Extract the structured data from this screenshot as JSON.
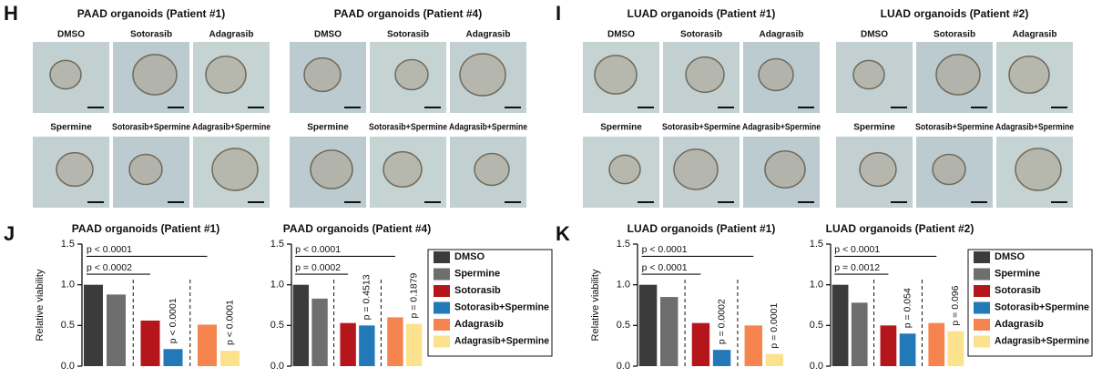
{
  "panel_letters": [
    "H",
    "I",
    "J",
    "K"
  ],
  "image_groups": [
    {
      "title": "PAAD organoids (Patient #1)",
      "labels": [
        "DMSO",
        "Sotorasib",
        "Adagrasib",
        "Spermine",
        "Sotorasib+Spermine",
        "Adagrasib+Spermine"
      ]
    },
    {
      "title": "PAAD organoids (Patient #4)",
      "labels": [
        "DMSO",
        "Sotorasib",
        "Adagrasib",
        "Spermine",
        "Sotorasib+Spermine",
        "Adagrasib+Spermine"
      ]
    },
    {
      "title": "LUAD organoids (Patient #1)",
      "labels": [
        "DMSO",
        "Sotorasib",
        "Adagrasib",
        "Spermine",
        "Sotorasib+Spermine",
        "Adagrasib+Spermine"
      ]
    },
    {
      "title": "LUAD organoids (Patient #2)",
      "labels": [
        "DMSO",
        "Sotorasib",
        "Adagrasib",
        "Spermine",
        "Sotorasib+Spermine",
        "Adagrasib+Spermine"
      ]
    }
  ],
  "chart_data": [
    {
      "type": "bar",
      "title": "PAAD organoids (Patient #1)",
      "y_label": "Relative viability",
      "categories": [
        "DMSO",
        "Spermine",
        "Sotorasib",
        "Sotorasib+Spermine",
        "Adagrasib",
        "Adagrasib+Spermine"
      ],
      "values": [
        1.0,
        0.88,
        0.56,
        0.21,
        0.51,
        0.19
      ],
      "colors": [
        "#3b3b3b",
        "#6e6e6e",
        "#b5161c",
        "#2379b8",
        "#f5844f",
        "#fde28e"
      ],
      "ylim": [
        0,
        1.5
      ],
      "yticks": [
        {
          "value": 0,
          "label": "0.0"
        },
        {
          "value": 0.5,
          "label": "0.5"
        },
        {
          "value": 1,
          "label": "1.0"
        },
        {
          "value": 1.5,
          "label": "1.5"
        }
      ],
      "brackets": [
        "p < 0.0001",
        "p < 0.0002"
      ],
      "bar_annotations": [
        "p < 0.0001",
        "p < 0.0001"
      ]
    },
    {
      "type": "bar",
      "title": "PAAD organoids (Patient #4)",
      "categories": [
        "DMSO",
        "Spermine",
        "Sotorasib",
        "Sotorasib+Spermine",
        "Adagrasib",
        "Adagrasib+Spermine"
      ],
      "values": [
        1.0,
        0.83,
        0.53,
        0.5,
        0.6,
        0.52
      ],
      "colors": [
        "#3b3b3b",
        "#6e6e6e",
        "#b5161c",
        "#2379b8",
        "#f5844f",
        "#fde28e"
      ],
      "ylim": [
        0,
        1.5
      ],
      "yticks": [
        {
          "value": 0,
          "label": "0.0"
        },
        {
          "value": 0.5,
          "label": "0.5"
        },
        {
          "value": 1,
          "label": "1.0"
        },
        {
          "value": 1.5,
          "label": "1.5"
        }
      ],
      "brackets": [
        "p < 0.0001",
        "p = 0.0002"
      ],
      "bar_annotations": [
        "p = 0.4513",
        "p = 0.1879"
      ],
      "legend": "right"
    },
    {
      "type": "bar",
      "title": "LUAD organoids (Patient #1)",
      "y_label": "Relative viability",
      "categories": [
        "DMSO",
        "Spermine",
        "Sotorasib",
        "Sotorasib+Spermine",
        "Adagrasib",
        "Adagrasib+Spermine"
      ],
      "values": [
        1.0,
        0.85,
        0.53,
        0.2,
        0.5,
        0.15
      ],
      "colors": [
        "#3b3b3b",
        "#6e6e6e",
        "#b5161c",
        "#2379b8",
        "#f5844f",
        "#fde28e"
      ],
      "ylim": [
        0,
        1.5
      ],
      "yticks": [
        {
          "value": 0,
          "label": "0.0"
        },
        {
          "value": 0.5,
          "label": "0.5"
        },
        {
          "value": 1,
          "label": "1.0"
        },
        {
          "value": 1.5,
          "label": "1.5"
        }
      ],
      "brackets": [
        "p < 0.0001",
        "p < 0.0001"
      ],
      "bar_annotations": [
        "p = 0.0002",
        "p = 0.0001"
      ]
    },
    {
      "type": "bar",
      "title": "LUAD organoids (Patient #2)",
      "categories": [
        "DMSO",
        "Spermine",
        "Sotorasib",
        "Sotorasib+Spermine",
        "Adagrasib",
        "Adagrasib+Spermine"
      ],
      "values": [
        1.0,
        0.78,
        0.5,
        0.4,
        0.53,
        0.43
      ],
      "colors": [
        "#3b3b3b",
        "#6e6e6e",
        "#b5161c",
        "#2379b8",
        "#f5844f",
        "#fde28e"
      ],
      "ylim": [
        0,
        1.5
      ],
      "yticks": [
        {
          "value": 0,
          "label": "0.0"
        },
        {
          "value": 0.5,
          "label": "0.5"
        },
        {
          "value": 1,
          "label": "1.0"
        },
        {
          "value": 1.5,
          "label": "1.5"
        }
      ],
      "brackets": [
        "p < 0.0001",
        "p = 0.0012"
      ],
      "bar_annotations": [
        "p = 0.054",
        "p = 0.096"
      ],
      "legend": "right"
    }
  ]
}
